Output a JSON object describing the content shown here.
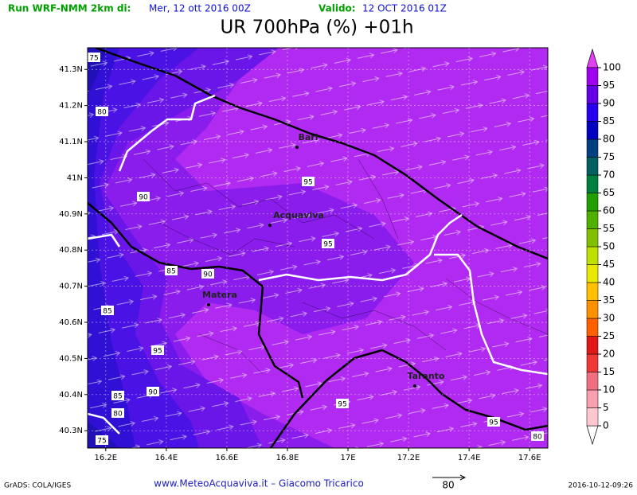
{
  "header": {
    "run_label": "Run WRF-NMM 2km di:",
    "run_date": "Mer, 12 ott 2016 00Z",
    "valid_label": "Valido:",
    "valid_date": "12 OCT 2016 01Z",
    "title": "UR 700hPa (%) +01h"
  },
  "map": {
    "xlim": [
      16.14,
      17.66
    ],
    "ylim": [
      40.252,
      41.36
    ],
    "xticks": [
      {
        "value": 16.2,
        "label": "16.2E"
      },
      {
        "value": 16.4,
        "label": "16.4E"
      },
      {
        "value": 16.6,
        "label": "16.6E"
      },
      {
        "value": 16.8,
        "label": "16.8E"
      },
      {
        "value": 17,
        "label": "17E"
      },
      {
        "value": 17.2,
        "label": "17.2E"
      },
      {
        "value": 17.4,
        "label": "17.4E"
      },
      {
        "value": 17.6,
        "label": "17.6E"
      }
    ],
    "yticks": [
      {
        "value": 41.3,
        "label": "41.3N"
      },
      {
        "value": 41.2,
        "label": "41.2N"
      },
      {
        "value": 41.1,
        "label": "41.1N"
      },
      {
        "value": 41,
        "label": "41N"
      },
      {
        "value": 40.9,
        "label": "40.9N"
      },
      {
        "value": 40.8,
        "label": "40.8N"
      },
      {
        "value": 40.7,
        "label": "40.7N"
      },
      {
        "value": 40.6,
        "label": "40.6N"
      },
      {
        "value": 40.5,
        "label": "40.5N"
      },
      {
        "value": 40.4,
        "label": "40.4N"
      },
      {
        "value": 40.3,
        "label": "40.3N"
      }
    ],
    "places": [
      "Bari",
      "Acquaviva",
      "Matera",
      "Taranto"
    ],
    "contour_labels": [
      75,
      80,
      90,
      95,
      95,
      85,
      90,
      85,
      95,
      90,
      85,
      80,
      75,
      95,
      95,
      80
    ]
  },
  "colorbar": {
    "ticks": [
      0,
      5,
      10,
      15,
      20,
      25,
      30,
      35,
      40,
      45,
      50,
      55,
      60,
      65,
      70,
      75,
      80,
      85,
      90,
      95,
      100
    ],
    "colors": [
      "#ffc8d0",
      "#f8a0b0",
      "#f07080",
      "#f03838",
      "#e01818",
      "#ff6000",
      "#ff9000",
      "#ffc000",
      "#e8e800",
      "#c0e000",
      "#80c000",
      "#50b000",
      "#20a000",
      "#008040",
      "#006060",
      "#004080",
      "#0000c0",
      "#2800f0",
      "#6400e8",
      "#a000f0"
    ]
  },
  "footer": {
    "software": "GrADS: COLA/IGES",
    "credit": "www.MeteoAcquaviva.it  –  Giacomo Tricarico",
    "vector_ref": 80,
    "timestamp": "2016-10-12-09:26"
  }
}
